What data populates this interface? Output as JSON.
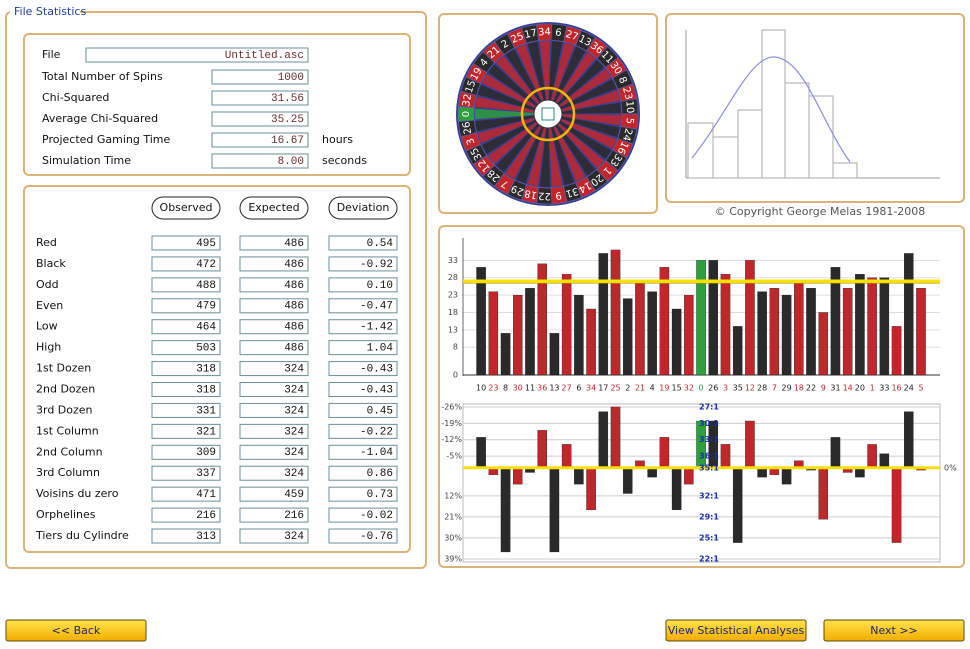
{
  "window": {
    "group_title": "File Statistics"
  },
  "file_info": {
    "rows": [
      {
        "label": "File",
        "value": "Untitled.asc"
      },
      {
        "label": "Total Number of Spins",
        "value": "1000"
      },
      {
        "label": "Chi-Squared",
        "value": "31.56"
      },
      {
        "label": "Average Chi-Squared",
        "value": "35.25"
      },
      {
        "label": "Projected Gaming Time",
        "value": "16.67",
        "unit": "hours"
      },
      {
        "label": "Simulation Time",
        "value": "8.00",
        "unit": "seconds"
      }
    ]
  },
  "stats_table": {
    "headers": [
      "Observed",
      "Expected",
      "Deviation"
    ],
    "rows": [
      [
        "Red",
        "495",
        "486",
        "0.54"
      ],
      [
        "Black",
        "472",
        "486",
        "-0.92"
      ],
      [
        "Odd",
        "488",
        "486",
        "0.10"
      ],
      [
        "Even",
        "479",
        "486",
        "-0.47"
      ],
      [
        "Low",
        "464",
        "486",
        "-1.42"
      ],
      [
        "High",
        "503",
        "486",
        "1.04"
      ],
      [
        "1st Dozen",
        "318",
        "324",
        "-0.43"
      ],
      [
        "2nd Dozen",
        "318",
        "324",
        "-0.43"
      ],
      [
        "3rd Dozen",
        "331",
        "324",
        "0.45"
      ],
      [
        "1st Column",
        "321",
        "324",
        "-0.22"
      ],
      [
        "2nd Column",
        "309",
        "324",
        "-1.04"
      ],
      [
        "3rd Column",
        "337",
        "324",
        "0.86"
      ],
      [
        "Voisins du zero",
        "471",
        "459",
        "0.73"
      ],
      [
        "Orphelines",
        "216",
        "216",
        "-0.02"
      ],
      [
        "Tiers du Cylindre",
        "313",
        "324",
        "-0.76"
      ]
    ]
  },
  "wheel": {
    "pockets": [
      {
        "number": "0",
        "color": "#2e9e3e"
      },
      {
        "number": "32",
        "color": "#c0272d"
      },
      {
        "number": "15",
        "color": "#2a2a2a"
      },
      {
        "number": "19",
        "color": "#c0272d"
      },
      {
        "number": "4",
        "color": "#2a2a2a"
      },
      {
        "number": "21",
        "color": "#c0272d"
      },
      {
        "number": "2",
        "color": "#2a2a2a"
      },
      {
        "number": "25",
        "color": "#c0272d"
      },
      {
        "number": "17",
        "color": "#2a2a2a"
      },
      {
        "number": "34",
        "color": "#c0272d"
      },
      {
        "number": "6",
        "color": "#2a2a2a"
      },
      {
        "number": "27",
        "color": "#c0272d"
      },
      {
        "number": "13",
        "color": "#2a2a2a"
      },
      {
        "number": "36",
        "color": "#c0272d"
      },
      {
        "number": "11",
        "color": "#2a2a2a"
      },
      {
        "number": "30",
        "color": "#c0272d"
      },
      {
        "number": "8",
        "color": "#2a2a2a"
      },
      {
        "number": "23",
        "color": "#c0272d"
      },
      {
        "number": "10",
        "color": "#2a2a2a"
      },
      {
        "number": "5",
        "color": "#c0272d"
      },
      {
        "number": "24",
        "color": "#2a2a2a"
      },
      {
        "number": "16",
        "color": "#c0272d"
      },
      {
        "number": "33",
        "color": "#2a2a2a"
      },
      {
        "number": "1",
        "color": "#c0272d"
      },
      {
        "number": "20",
        "color": "#2a2a2a"
      },
      {
        "number": "14",
        "color": "#c0272d"
      },
      {
        "number": "31",
        "color": "#2a2a2a"
      },
      {
        "number": "9",
        "color": "#c0272d"
      },
      {
        "number": "22",
        "color": "#2a2a2a"
      },
      {
        "number": "18",
        "color": "#c0272d"
      },
      {
        "number": "29",
        "color": "#2a2a2a"
      },
      {
        "number": "7",
        "color": "#c0272d"
      },
      {
        "number": "28",
        "color": "#2a2a2a"
      },
      {
        "number": "12",
        "color": "#c0272d"
      },
      {
        "number": "35",
        "color": "#2a2a2a"
      },
      {
        "number": "3",
        "color": "#c0272d"
      },
      {
        "number": "26",
        "color": "#2a2a2a"
      }
    ]
  },
  "copyright": "© Copyright George Melas 1981-2008",
  "chart_data": [
    {
      "type": "bar",
      "categories": [
        "10",
        "23",
        "8",
        "30",
        "11",
        "36",
        "13",
        "27",
        "6",
        "34",
        "17",
        "25",
        "2",
        "21",
        "4",
        "19",
        "15",
        "32",
        "0",
        "26",
        "3",
        "35",
        "12",
        "28",
        "7",
        "29",
        "18",
        "22",
        "9",
        "31",
        "14",
        "20",
        "1",
        "33",
        "16",
        "24",
        "5"
      ],
      "values": [
        31,
        24,
        12,
        23,
        25,
        32,
        12,
        29,
        23,
        19,
        35,
        36,
        22,
        27,
        24,
        31,
        19,
        23,
        33,
        33,
        29,
        14,
        33,
        24,
        25,
        23,
        27,
        25,
        18,
        31,
        25,
        29,
        28,
        28,
        14,
        35,
        25
      ],
      "ylim": [
        0,
        38
      ],
      "yticks": [
        0,
        8,
        13,
        18,
        23,
        28,
        33
      ],
      "grid": true,
      "reference_line": 27
    },
    {
      "type": "bar",
      "y_inverted": true,
      "values": [
        -13,
        3,
        36,
        7,
        2,
        -16,
        36,
        -10,
        7,
        18,
        -24,
        -26,
        11,
        -3,
        4,
        -13,
        18,
        7,
        -20,
        -20,
        -10,
        32,
        -20,
        4,
        3,
        7,
        -3,
        1,
        22,
        -13,
        2,
        4,
        -10,
        -6,
        32,
        -24,
        1
      ],
      "ylim": [
        -28,
        40
      ],
      "yticks": [
        {
          "value": -26,
          "label": "-26%"
        },
        {
          "value": -19,
          "label": "-19%"
        },
        {
          "value": -12,
          "label": "-12%"
        },
        {
          "value": -5,
          "label": "-5%"
        },
        {
          "value": 12,
          "label": "12%"
        },
        {
          "value": 21,
          "label": "21%"
        },
        {
          "value": 30,
          "label": "30%"
        },
        {
          "value": 39,
          "label": "39%"
        }
      ],
      "y2lim": [
        -28,
        40
      ],
      "y2ticks": [
        {
          "value": 0,
          "label": "0%"
        }
      ],
      "payout_ticks": [
        {
          "value": -26,
          "label": "27:1"
        },
        {
          "value": -19,
          "label": "30:1"
        },
        {
          "value": -12,
          "label": "33:1"
        },
        {
          "value": -5,
          "label": "36:1"
        },
        {
          "value": 0,
          "label": "35:1"
        },
        {
          "value": 12,
          "label": "32:1"
        },
        {
          "value": 21,
          "label": "29:1"
        },
        {
          "value": 30,
          "label": "25:1"
        },
        {
          "value": 39,
          "label": "22:1"
        }
      ],
      "grid": true,
      "reference_line": 0
    }
  ],
  "buttons": {
    "back": "<< Back",
    "analyses": "View Statistical Analyses",
    "next": "Next >>"
  }
}
